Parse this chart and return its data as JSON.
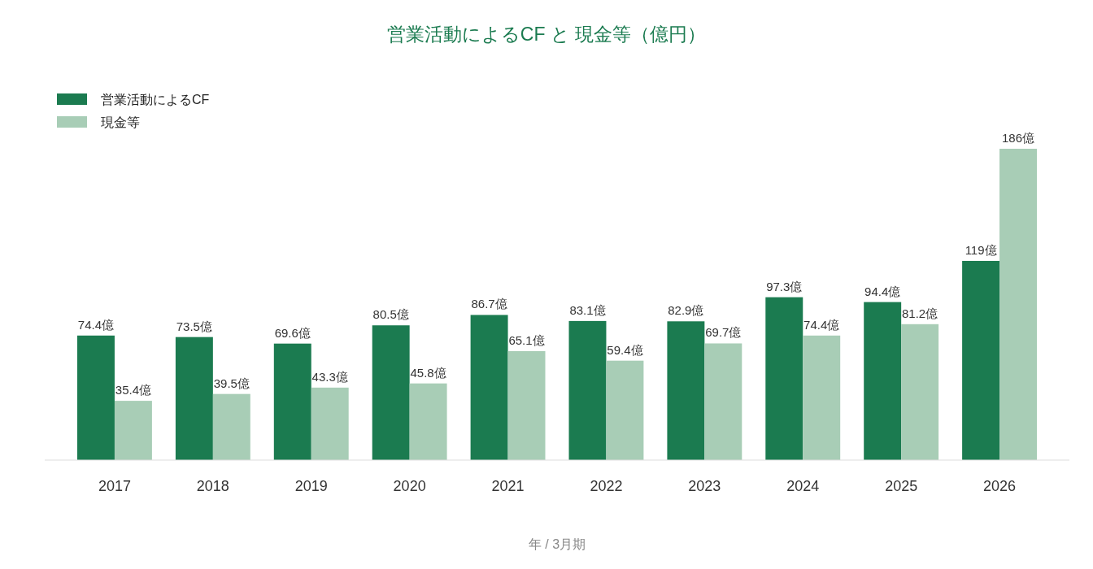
{
  "chart_data": {
    "type": "bar",
    "title": "営業活動によるCF と 現金等（億円）",
    "xlabel": "年 / 3月期",
    "categories": [
      "2017",
      "2018",
      "2019",
      "2020",
      "2021",
      "2022",
      "2023",
      "2024",
      "2025",
      "2026"
    ],
    "legend": "top left",
    "series": [
      {
        "name": "営業活動によるCF",
        "color": "#1b7b50",
        "values": [
          74.4,
          73.5,
          69.6,
          80.5,
          86.7,
          83.1,
          82.9,
          97.3,
          94.4,
          119
        ],
        "value_labels": [
          "74.4億",
          "73.5億",
          "69.6億",
          "80.5億",
          "86.7億",
          "83.1億",
          "82.9億",
          "97.3億",
          "94.4億",
          "119億"
        ]
      },
      {
        "name": "現金等",
        "color": "#a8cdb6",
        "values": [
          35.4,
          39.5,
          43.3,
          45.8,
          65.1,
          59.4,
          69.7,
          74.4,
          81.2,
          186
        ],
        "value_labels": [
          "35.4億",
          "39.5億",
          "43.3億",
          "45.8億",
          "65.1億",
          "59.4億",
          "69.7億",
          "74.4億",
          "81.2億",
          "186億"
        ]
      }
    ]
  }
}
